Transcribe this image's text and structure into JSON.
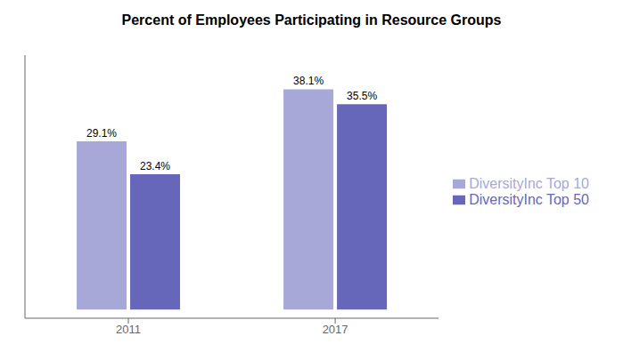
{
  "chart_data": {
    "type": "bar",
    "title": "Percent of Employees Participating in Resource Groups",
    "categories": [
      "2011",
      "2017"
    ],
    "series": [
      {
        "name": "DiversityInc Top 10",
        "color": "#a8a8d8",
        "values": [
          29.1,
          38.1
        ],
        "value_labels": [
          "29.1%",
          "38.1%"
        ]
      },
      {
        "name": "DiversityInc Top 50",
        "color": "#6666bb",
        "values": [
          23.4,
          35.5
        ],
        "value_labels": [
          "23.4%",
          "35.5%"
        ]
      }
    ],
    "ylim": [
      -1.5,
      44
    ],
    "data_labels": true,
    "tick_labels": "x",
    "grid": false,
    "legend": "right"
  }
}
